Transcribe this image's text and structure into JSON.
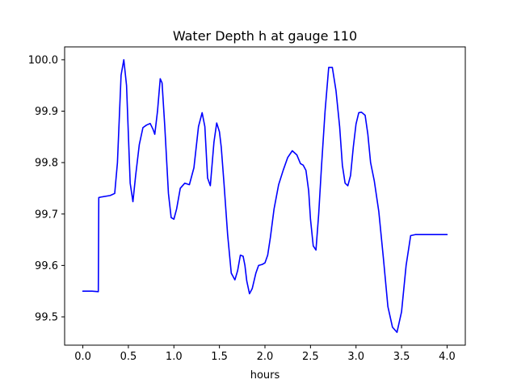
{
  "chart_data": {
    "type": "line",
    "title": "Water Depth h at gauge 110",
    "xlabel": "hours",
    "ylabel": "",
    "xlim": [
      -0.2,
      4.2
    ],
    "ylim": [
      99.445,
      100.025
    ],
    "grid": false,
    "legend": "none",
    "xticks": [
      0.0,
      0.5,
      1.0,
      1.5,
      2.0,
      2.5,
      3.0,
      3.5,
      4.0
    ],
    "xtick_labels": [
      "0.0",
      "0.5",
      "1.0",
      "1.5",
      "2.0",
      "2.5",
      "3.0",
      "3.5",
      "4.0"
    ],
    "yticks": [
      99.5,
      99.6,
      99.7,
      99.8,
      99.9,
      100.0
    ],
    "ytick_labels": [
      "99.5",
      "99.6",
      "99.7",
      "99.8",
      "99.9",
      "100.0"
    ],
    "series": [
      {
        "color": "#0000ff",
        "x": [
          0.0,
          0.1,
          0.17,
          0.175,
          0.2,
          0.3,
          0.35,
          0.38,
          0.42,
          0.45,
          0.48,
          0.52,
          0.55,
          0.58,
          0.62,
          0.66,
          0.7,
          0.74,
          0.77,
          0.79,
          0.82,
          0.85,
          0.87,
          0.9,
          0.94,
          0.97,
          1.0,
          1.03,
          1.07,
          1.12,
          1.17,
          1.22,
          1.27,
          1.31,
          1.34,
          1.37,
          1.4,
          1.44,
          1.47,
          1.5,
          1.52,
          1.55,
          1.59,
          1.63,
          1.67,
          1.7,
          1.73,
          1.76,
          1.78,
          1.8,
          1.83,
          1.86,
          1.9,
          1.93,
          1.97,
          2.0,
          2.03,
          2.06,
          2.1,
          2.15,
          2.2,
          2.25,
          2.3,
          2.35,
          2.39,
          2.42,
          2.45,
          2.48,
          2.5,
          2.53,
          2.56,
          2.59,
          2.62,
          2.66,
          2.7,
          2.74,
          2.78,
          2.82,
          2.85,
          2.88,
          2.91,
          2.94,
          2.97,
          3.0,
          3.03,
          3.06,
          3.1,
          3.13,
          3.16,
          3.2,
          3.25,
          3.3,
          3.35,
          3.4,
          3.45,
          3.5,
          3.55,
          3.6,
          3.65,
          3.7,
          3.75,
          3.8,
          3.85,
          3.9,
          3.95,
          4.0
        ],
        "y": [
          99.55,
          99.55,
          99.549,
          99.732,
          99.733,
          99.736,
          99.74,
          99.8,
          99.97,
          100.0,
          99.95,
          99.76,
          99.724,
          99.775,
          99.835,
          99.868,
          99.873,
          99.876,
          99.865,
          99.855,
          99.9,
          99.963,
          99.955,
          99.87,
          99.74,
          99.693,
          99.69,
          99.71,
          99.75,
          99.76,
          99.757,
          99.79,
          99.87,
          99.897,
          99.87,
          99.77,
          99.755,
          99.84,
          99.877,
          99.86,
          99.83,
          99.76,
          99.66,
          99.585,
          99.572,
          99.59,
          99.62,
          99.618,
          99.6,
          99.57,
          99.545,
          99.555,
          99.585,
          99.6,
          99.602,
          99.605,
          99.62,
          99.655,
          99.71,
          99.757,
          99.785,
          99.81,
          99.823,
          99.815,
          99.798,
          99.795,
          99.785,
          99.745,
          99.69,
          99.638,
          99.63,
          99.7,
          99.79,
          99.9,
          99.985,
          99.985,
          99.94,
          99.87,
          99.795,
          99.76,
          99.755,
          99.775,
          99.83,
          99.875,
          99.897,
          99.898,
          99.892,
          99.855,
          99.8,
          99.765,
          99.705,
          99.615,
          99.52,
          99.48,
          99.47,
          99.51,
          99.6,
          99.658,
          99.66,
          99.66,
          99.66,
          99.66,
          99.66,
          99.66,
          99.66,
          99.66
        ]
      }
    ]
  }
}
